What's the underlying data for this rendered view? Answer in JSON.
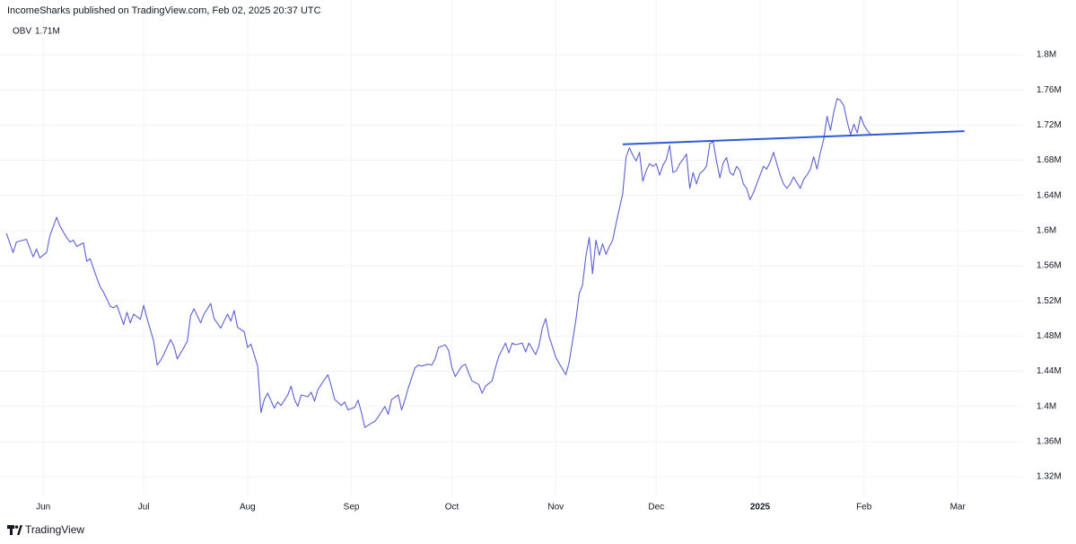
{
  "header": {
    "title": "IncomeSharks published on TradingView.com, Feb 02, 2025 20:37 UTC"
  },
  "footer": {
    "brand": "TradingView"
  },
  "chart_data": {
    "type": "line",
    "indicator": {
      "name": "OBV",
      "last_value": {
        "value": 1.71,
        "label": "1.71M"
      }
    },
    "xlim": [
      -12.9,
      292.5
    ],
    "ylim": [
      1.3027,
      1.8418
    ],
    "grid": true,
    "xticks": [
      {
        "value": 0,
        "label": "Jun"
      },
      {
        "value": 30,
        "label": "Jul"
      },
      {
        "value": 61,
        "label": "Aug"
      },
      {
        "value": 92,
        "label": "Sep"
      },
      {
        "value": 122,
        "label": "Oct"
      },
      {
        "value": 153,
        "label": "Nov"
      },
      {
        "value": 183,
        "label": "Dec"
      },
      {
        "value": 214,
        "label": "2025",
        "bold": true
      },
      {
        "value": 245,
        "label": "Feb"
      },
      {
        "value": 273,
        "label": "Mar"
      }
    ],
    "yticks": [
      {
        "value": 1.32,
        "label": "1.32M"
      },
      {
        "value": 1.36,
        "label": "1.36M"
      },
      {
        "value": 1.4,
        "label": "1.4M"
      },
      {
        "value": 1.44,
        "label": "1.44M"
      },
      {
        "value": 1.48,
        "label": "1.48M"
      },
      {
        "value": 1.52,
        "label": "1.52M"
      },
      {
        "value": 1.56,
        "label": "1.56M"
      },
      {
        "value": 1.6,
        "label": "1.6M"
      },
      {
        "value": 1.64,
        "label": "1.64M"
      },
      {
        "value": 1.68,
        "label": "1.68M"
      },
      {
        "value": 1.72,
        "label": "1.72M"
      },
      {
        "value": 1.76,
        "label": "1.76M"
      },
      {
        "value": 1.8,
        "label": "1.8M"
      }
    ],
    "series": [
      {
        "name": "OBV",
        "color": "#5d5fd3",
        "x": [
          -11,
          -9,
          -8,
          -5,
          -3,
          -2,
          -1,
          1,
          2,
          4,
          5,
          7,
          8,
          9,
          10,
          12,
          13,
          14,
          16,
          17,
          18,
          20,
          21,
          22,
          24,
          25,
          26,
          27,
          29,
          30,
          31,
          33,
          34,
          35,
          36,
          38,
          39,
          40,
          42,
          43,
          44,
          45,
          47,
          48,
          50,
          51,
          53,
          54,
          55,
          56,
          57,
          58,
          60,
          61,
          62,
          64,
          65,
          66,
          67,
          69,
          70,
          71,
          73,
          74,
          75,
          76,
          77,
          79,
          80,
          81,
          82,
          83,
          85,
          86,
          87,
          89,
          90,
          91,
          93,
          94,
          95,
          96,
          98,
          99,
          100,
          102,
          103,
          104,
          106,
          107,
          108,
          109,
          111,
          112,
          113,
          115,
          116,
          117,
          118,
          120,
          121,
          122,
          123,
          125,
          126,
          127,
          128,
          130,
          131,
          132,
          134,
          135,
          136,
          138,
          139,
          140,
          141,
          143,
          144,
          145,
          147,
          148,
          149,
          150,
          151,
          153,
          154,
          156,
          157,
          159,
          160,
          161,
          162,
          163,
          164,
          165,
          166,
          167,
          168,
          169,
          170,
          171,
          173,
          174,
          175,
          176,
          177,
          178,
          179,
          180,
          181,
          182,
          183,
          184,
          185,
          186,
          187,
          188,
          189,
          190,
          191,
          192,
          193,
          194,
          195,
          196,
          197,
          198,
          199,
          200,
          201,
          202,
          203,
          204,
          205,
          206,
          207,
          208,
          209,
          210,
          211,
          212,
          213,
          214,
          215,
          216,
          217,
          218,
          219,
          220,
          221,
          222,
          223,
          224,
          226,
          227,
          228,
          229,
          230,
          231,
          232,
          233,
          234,
          235,
          236,
          237,
          238,
          239,
          240,
          241,
          242,
          243,
          244,
          245,
          246,
          247
        ],
        "values": [
          1.597,
          1.575,
          1.587,
          1.59,
          1.57,
          1.579,
          1.569,
          1.575,
          1.594,
          1.615,
          1.605,
          1.592,
          1.587,
          1.589,
          1.582,
          1.586,
          1.565,
          1.568,
          1.546,
          1.536,
          1.53,
          1.514,
          1.512,
          1.515,
          1.493,
          1.507,
          1.495,
          1.505,
          1.499,
          1.515,
          1.5,
          1.474,
          1.447,
          1.452,
          1.459,
          1.476,
          1.469,
          1.454,
          1.467,
          1.474,
          1.503,
          1.511,
          1.495,
          1.505,
          1.517,
          1.5,
          1.489,
          1.497,
          1.505,
          1.497,
          1.509,
          1.49,
          1.485,
          1.467,
          1.471,
          1.446,
          1.393,
          1.408,
          1.415,
          1.398,
          1.405,
          1.401,
          1.413,
          1.423,
          1.408,
          1.4,
          1.413,
          1.411,
          1.416,
          1.406,
          1.419,
          1.425,
          1.436,
          1.423,
          1.408,
          1.401,
          1.405,
          1.396,
          1.399,
          1.407,
          1.393,
          1.376,
          1.381,
          1.383,
          1.388,
          1.4,
          1.391,
          1.408,
          1.413,
          1.396,
          1.408,
          1.421,
          1.444,
          1.447,
          1.446,
          1.448,
          1.447,
          1.454,
          1.467,
          1.47,
          1.464,
          1.444,
          1.434,
          1.446,
          1.448,
          1.438,
          1.429,
          1.425,
          1.415,
          1.423,
          1.429,
          1.444,
          1.457,
          1.472,
          1.461,
          1.472,
          1.47,
          1.472,
          1.462,
          1.472,
          1.459,
          1.469,
          1.489,
          1.5,
          1.48,
          1.456,
          1.449,
          1.436,
          1.45,
          1.498,
          1.528,
          1.538,
          1.571,
          1.592,
          1.551,
          1.589,
          1.572,
          1.585,
          1.573,
          1.582,
          1.589,
          1.608,
          1.642,
          1.684,
          1.694,
          1.686,
          1.679,
          1.689,
          1.656,
          1.668,
          1.676,
          1.673,
          1.676,
          1.663,
          1.674,
          1.681,
          1.697,
          1.666,
          1.668,
          1.676,
          1.681,
          1.687,
          1.648,
          1.666,
          1.653,
          1.665,
          1.668,
          1.673,
          1.699,
          1.701,
          1.679,
          1.66,
          1.677,
          1.683,
          1.666,
          1.663,
          1.673,
          1.668,
          1.653,
          1.648,
          1.635,
          1.643,
          1.653,
          1.663,
          1.673,
          1.67,
          1.678,
          1.689,
          1.676,
          1.663,
          1.653,
          1.648,
          1.653,
          1.661,
          1.648,
          1.658,
          1.663,
          1.67,
          1.684,
          1.67,
          1.689,
          1.704,
          1.73,
          1.714,
          1.735,
          1.75,
          1.748,
          1.742,
          1.724,
          1.709,
          1.721,
          1.711,
          1.73,
          1.72,
          1.714,
          1.709
        ]
      }
    ],
    "trendline": {
      "color": "#2c5bd6",
      "x": [
        173,
        275
      ],
      "values": [
        1.698,
        1.713
      ]
    }
  }
}
